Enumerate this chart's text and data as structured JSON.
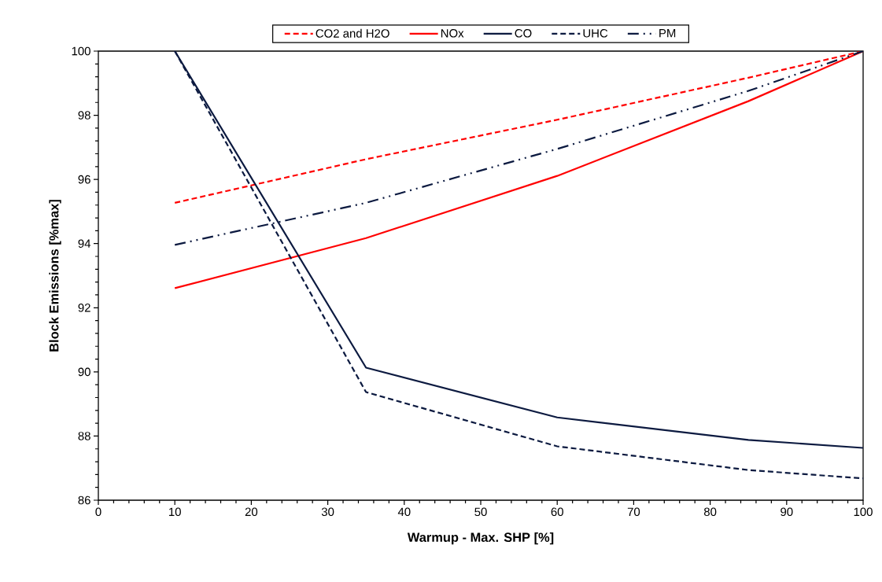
{
  "chart_data": {
    "type": "line",
    "xlabel": "Warmup - Max. SHP [%]",
    "ylabel": "Block Emissions [%max]",
    "x": [
      10,
      35,
      60,
      85,
      100
    ],
    "series": [
      {
        "name": "CO2 and H2O",
        "color": "#ff0000",
        "line_style": "dashed",
        "values": [
          95.27,
          96.63,
          97.86,
          99.17,
          100
        ]
      },
      {
        "name": "NOx",
        "color": "#ff0000",
        "line_style": "solid",
        "values": [
          92.61,
          94.17,
          96.11,
          98.44,
          100
        ]
      },
      {
        "name": "CO",
        "color": "#0c1a40",
        "line_style": "solid",
        "values": [
          100,
          90.13,
          88.58,
          87.88,
          87.63
        ]
      },
      {
        "name": "UHC",
        "color": "#0c1a40",
        "line_style": "dashed",
        "values": [
          100,
          89.37,
          87.68,
          86.94,
          86.68
        ]
      },
      {
        "name": "PM",
        "color": "#0c1a40",
        "line_style": "dashdotted",
        "values": [
          93.96,
          95.27,
          96.95,
          98.76,
          100
        ]
      }
    ],
    "xlim": [
      0,
      100
    ],
    "xticks": [
      0,
      10,
      20,
      30,
      40,
      50,
      60,
      70,
      80,
      90,
      100
    ],
    "ylim": [
      86,
      100
    ],
    "yticks": [
      86,
      88,
      90,
      92,
      94,
      96,
      98,
      100
    ],
    "grid": false,
    "legend": "top",
    "marker": "none"
  }
}
